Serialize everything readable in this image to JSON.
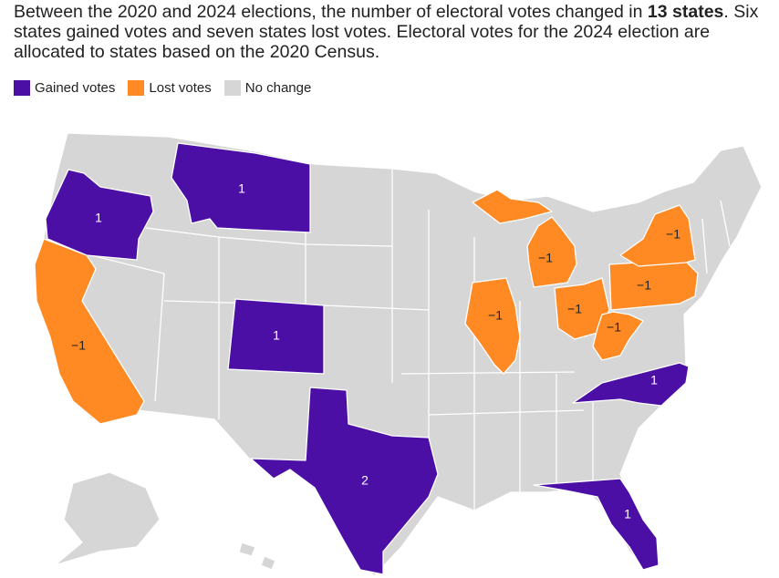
{
  "headline": {
    "part1": "Between the 2020 and 2024 elections, the number of electoral votes changed in ",
    "bold1": "13 states",
    "part2": ". Six states gained votes and seven states lost votes. Electoral votes for the 2024 election are allocated to states based on the 2020 Census."
  },
  "legend": {
    "gained_label": "Gained votes",
    "lost_label": "Lost votes",
    "nochange_label": "No change"
  },
  "colors": {
    "gained": "#4b0fa6",
    "lost": "#ff8a24",
    "nochange": "#d6d6d6",
    "border": "#ffffff"
  },
  "states": [
    {
      "name": "Oregon",
      "status": "gained",
      "change": "1"
    },
    {
      "name": "Montana",
      "status": "gained",
      "change": "1"
    },
    {
      "name": "Colorado",
      "status": "gained",
      "change": "1"
    },
    {
      "name": "Texas",
      "status": "gained",
      "change": "2"
    },
    {
      "name": "North Carolina",
      "status": "gained",
      "change": "1"
    },
    {
      "name": "Florida",
      "status": "gained",
      "change": "1"
    },
    {
      "name": "California",
      "status": "lost",
      "change": "−1"
    },
    {
      "name": "Illinois",
      "status": "lost",
      "change": "−1"
    },
    {
      "name": "Michigan",
      "status": "lost",
      "change": "−1"
    },
    {
      "name": "Ohio",
      "status": "lost",
      "change": "−1"
    },
    {
      "name": "Pennsylvania",
      "status": "lost",
      "change": "−1"
    },
    {
      "name": "New York",
      "status": "lost",
      "change": "−1"
    },
    {
      "name": "West Virginia",
      "status": "lost",
      "change": "−1"
    }
  ]
}
